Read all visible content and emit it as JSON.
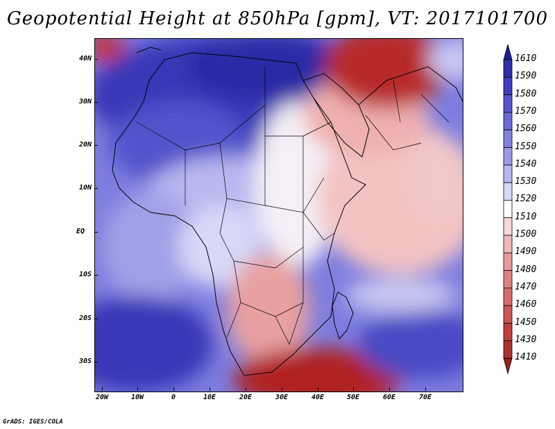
{
  "title": "Geopotential Height at 850hPa [gpm], VT: 2017101700",
  "lat_labels": [
    "40N",
    "30N",
    "20N",
    "10N",
    "EQ",
    "10S",
    "20S",
    "30S"
  ],
  "lon_labels": [
    "20W",
    "10W",
    "0",
    "10E",
    "20E",
    "30E",
    "40E",
    "50E",
    "60E",
    "70E"
  ],
  "colorbar": {
    "levels": [
      "1610",
      "1590",
      "1580",
      "1570",
      "1560",
      "1550",
      "1540",
      "1530",
      "1520",
      "1510",
      "1500",
      "1490",
      "1480",
      "1470",
      "1460",
      "1450",
      "1430",
      "1410"
    ],
    "colors": [
      "#1e1e9b",
      "#2f2fae",
      "#3f3fc3",
      "#5555cf",
      "#6a6ad8",
      "#8080e0",
      "#9a9ae8",
      "#b8b8f0",
      "#d8d8f8",
      "#ffffff",
      "#f8d8d8",
      "#f0b8b8",
      "#e89a9a",
      "#e08080",
      "#d86a6a",
      "#cf5555",
      "#c03f3f",
      "#ae2f2f",
      "#9b1e1e"
    ]
  },
  "credit": "GrADS: IGES/COLA"
}
